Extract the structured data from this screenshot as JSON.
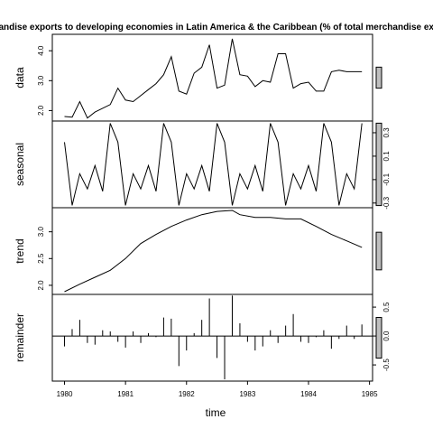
{
  "chart_data": {
    "type": "line",
    "title": "chandise exports to developing economies in Latin America & the Caribbean (% of total merchandise expo",
    "xlabel": "time",
    "x_ticks": [
      "1980",
      "1981",
      "1982",
      "1983",
      "1984",
      "1985"
    ],
    "xlim": [
      1979.8,
      1985.05
    ],
    "panels": [
      {
        "name": "data",
        "ylim": [
          1.65,
          4.55
        ],
        "y_ticks": [
          2.0,
          3.0,
          4.0
        ],
        "y_tick_labels": [
          "2.0",
          "3.0",
          "4.0"
        ],
        "y_axis_side": "left",
        "style": "line",
        "x": [
          1980.0,
          1980.125,
          1980.25,
          1980.375,
          1980.5,
          1980.75,
          1980.875,
          1981.0,
          1981.125,
          1981.25,
          1981.375,
          1981.5,
          1981.625,
          1981.75,
          1981.875,
          1982.0,
          1982.125,
          1982.25,
          1982.375,
          1982.5,
          1982.625,
          1982.75,
          1982.875,
          1983.0,
          1983.125,
          1983.25,
          1983.375,
          1983.5,
          1983.625,
          1983.75,
          1983.875,
          1984.0,
          1984.125,
          1984.25,
          1984.375,
          1984.5,
          1984.625,
          1984.75,
          1984.875
        ],
        "y": [
          1.8,
          1.78,
          2.3,
          1.75,
          1.95,
          2.2,
          2.75,
          2.35,
          2.3,
          2.5,
          2.7,
          2.9,
          3.2,
          3.8,
          2.65,
          2.55,
          3.25,
          3.45,
          4.2,
          2.75,
          2.85,
          4.4,
          3.2,
          3.15,
          2.8,
          3.0,
          2.95,
          3.9,
          3.9,
          2.75,
          2.9,
          2.95,
          2.65,
          2.65,
          3.3,
          3.35,
          3.3,
          3.3,
          3.3
        ]
      },
      {
        "name": "seasonal",
        "ylim": [
          -0.34,
          0.4
        ],
        "y_ticks": [
          -0.3,
          -0.1,
          0.1,
          0.3
        ],
        "y_tick_labels": [
          "-0.3",
          "-0.1",
          "0.1",
          "0.3"
        ],
        "y_axis_side": "right",
        "style": "line",
        "x": [
          1980.0,
          1980.125,
          1980.25,
          1980.375,
          1980.5,
          1980.625,
          1980.75,
          1980.875,
          1981.0,
          1981.125,
          1981.25,
          1981.375,
          1981.5,
          1981.625,
          1981.75,
          1981.875,
          1982.0,
          1982.125,
          1982.25,
          1982.375,
          1982.5,
          1982.625,
          1982.75,
          1982.875,
          1983.0,
          1983.125,
          1983.25,
          1983.375,
          1983.5,
          1983.625,
          1983.75,
          1983.875,
          1984.0,
          1984.125,
          1984.25,
          1984.375,
          1984.5,
          1984.625,
          1984.75,
          1984.875
        ],
        "y": [
          0.22,
          -0.32,
          -0.05,
          -0.18,
          0.02,
          -0.2,
          0.38,
          0.22,
          -0.32,
          -0.05,
          -0.18,
          0.02,
          -0.2,
          0.38,
          0.22,
          -0.32,
          -0.05,
          -0.18,
          0.02,
          -0.2,
          0.38,
          0.22,
          -0.32,
          -0.05,
          -0.18,
          0.02,
          -0.2,
          0.38,
          0.22,
          -0.32,
          -0.05,
          -0.18,
          0.02,
          -0.2,
          0.38,
          0.22,
          -0.32,
          -0.05,
          -0.18,
          0.38
        ]
      },
      {
        "name": "trend",
        "ylim": [
          1.83,
          3.45
        ],
        "y_ticks": [
          2.0,
          2.5,
          3.0
        ],
        "y_tick_labels": [
          "2.0",
          "2.5",
          "3.0"
        ],
        "y_axis_side": "left",
        "style": "line",
        "x": [
          1980.0,
          1980.25,
          1980.5,
          1980.75,
          1981.0,
          1981.25,
          1981.5,
          1981.75,
          1982.0,
          1982.25,
          1982.5,
          1982.75,
          1982.875,
          1983.125,
          1983.375,
          1983.625,
          1983.875,
          1984.125,
          1984.375,
          1984.625,
          1984.875
        ],
        "y": [
          1.88,
          2.02,
          2.15,
          2.28,
          2.5,
          2.78,
          2.95,
          3.1,
          3.22,
          3.32,
          3.38,
          3.4,
          3.32,
          3.27,
          3.27,
          3.24,
          3.24,
          3.1,
          2.95,
          2.83,
          2.71
        ]
      },
      {
        "name": "remainder",
        "ylim": [
          -0.78,
          0.72
        ],
        "y_ticks": [
          -0.5,
          0.0,
          0.5
        ],
        "y_tick_labels": [
          "-0.5",
          "0.0",
          "0.5"
        ],
        "y_axis_side": "right",
        "style": "bars",
        "x": [
          1980.0,
          1980.125,
          1980.25,
          1980.375,
          1980.5,
          1980.625,
          1980.75,
          1980.875,
          1981.0,
          1981.125,
          1981.25,
          1981.375,
          1981.5,
          1981.625,
          1981.75,
          1981.875,
          1982.0,
          1982.125,
          1982.25,
          1982.375,
          1982.5,
          1982.625,
          1982.75,
          1982.875,
          1983.0,
          1983.125,
          1983.25,
          1983.375,
          1983.5,
          1983.625,
          1983.75,
          1983.875,
          1984.0,
          1984.125,
          1984.25,
          1984.375,
          1984.5,
          1984.625,
          1984.75,
          1984.875
        ],
        "y": [
          -0.18,
          0.12,
          0.28,
          -0.12,
          -0.15,
          0.1,
          0.08,
          -0.1,
          -0.2,
          0.08,
          -0.12,
          0.05,
          -0.02,
          0.32,
          0.3,
          -0.52,
          -0.25,
          0.05,
          0.28,
          0.65,
          -0.38,
          -0.75,
          0.7,
          0.22,
          -0.1,
          -0.25,
          -0.18,
          0.1,
          -0.12,
          0.18,
          0.38,
          -0.1,
          -0.12,
          -0.02,
          0.1,
          -0.22,
          -0.05,
          0.18,
          -0.05,
          0.2
        ]
      }
    ],
    "scale_bar_color": "#bebebe",
    "line_color": "#000000"
  }
}
